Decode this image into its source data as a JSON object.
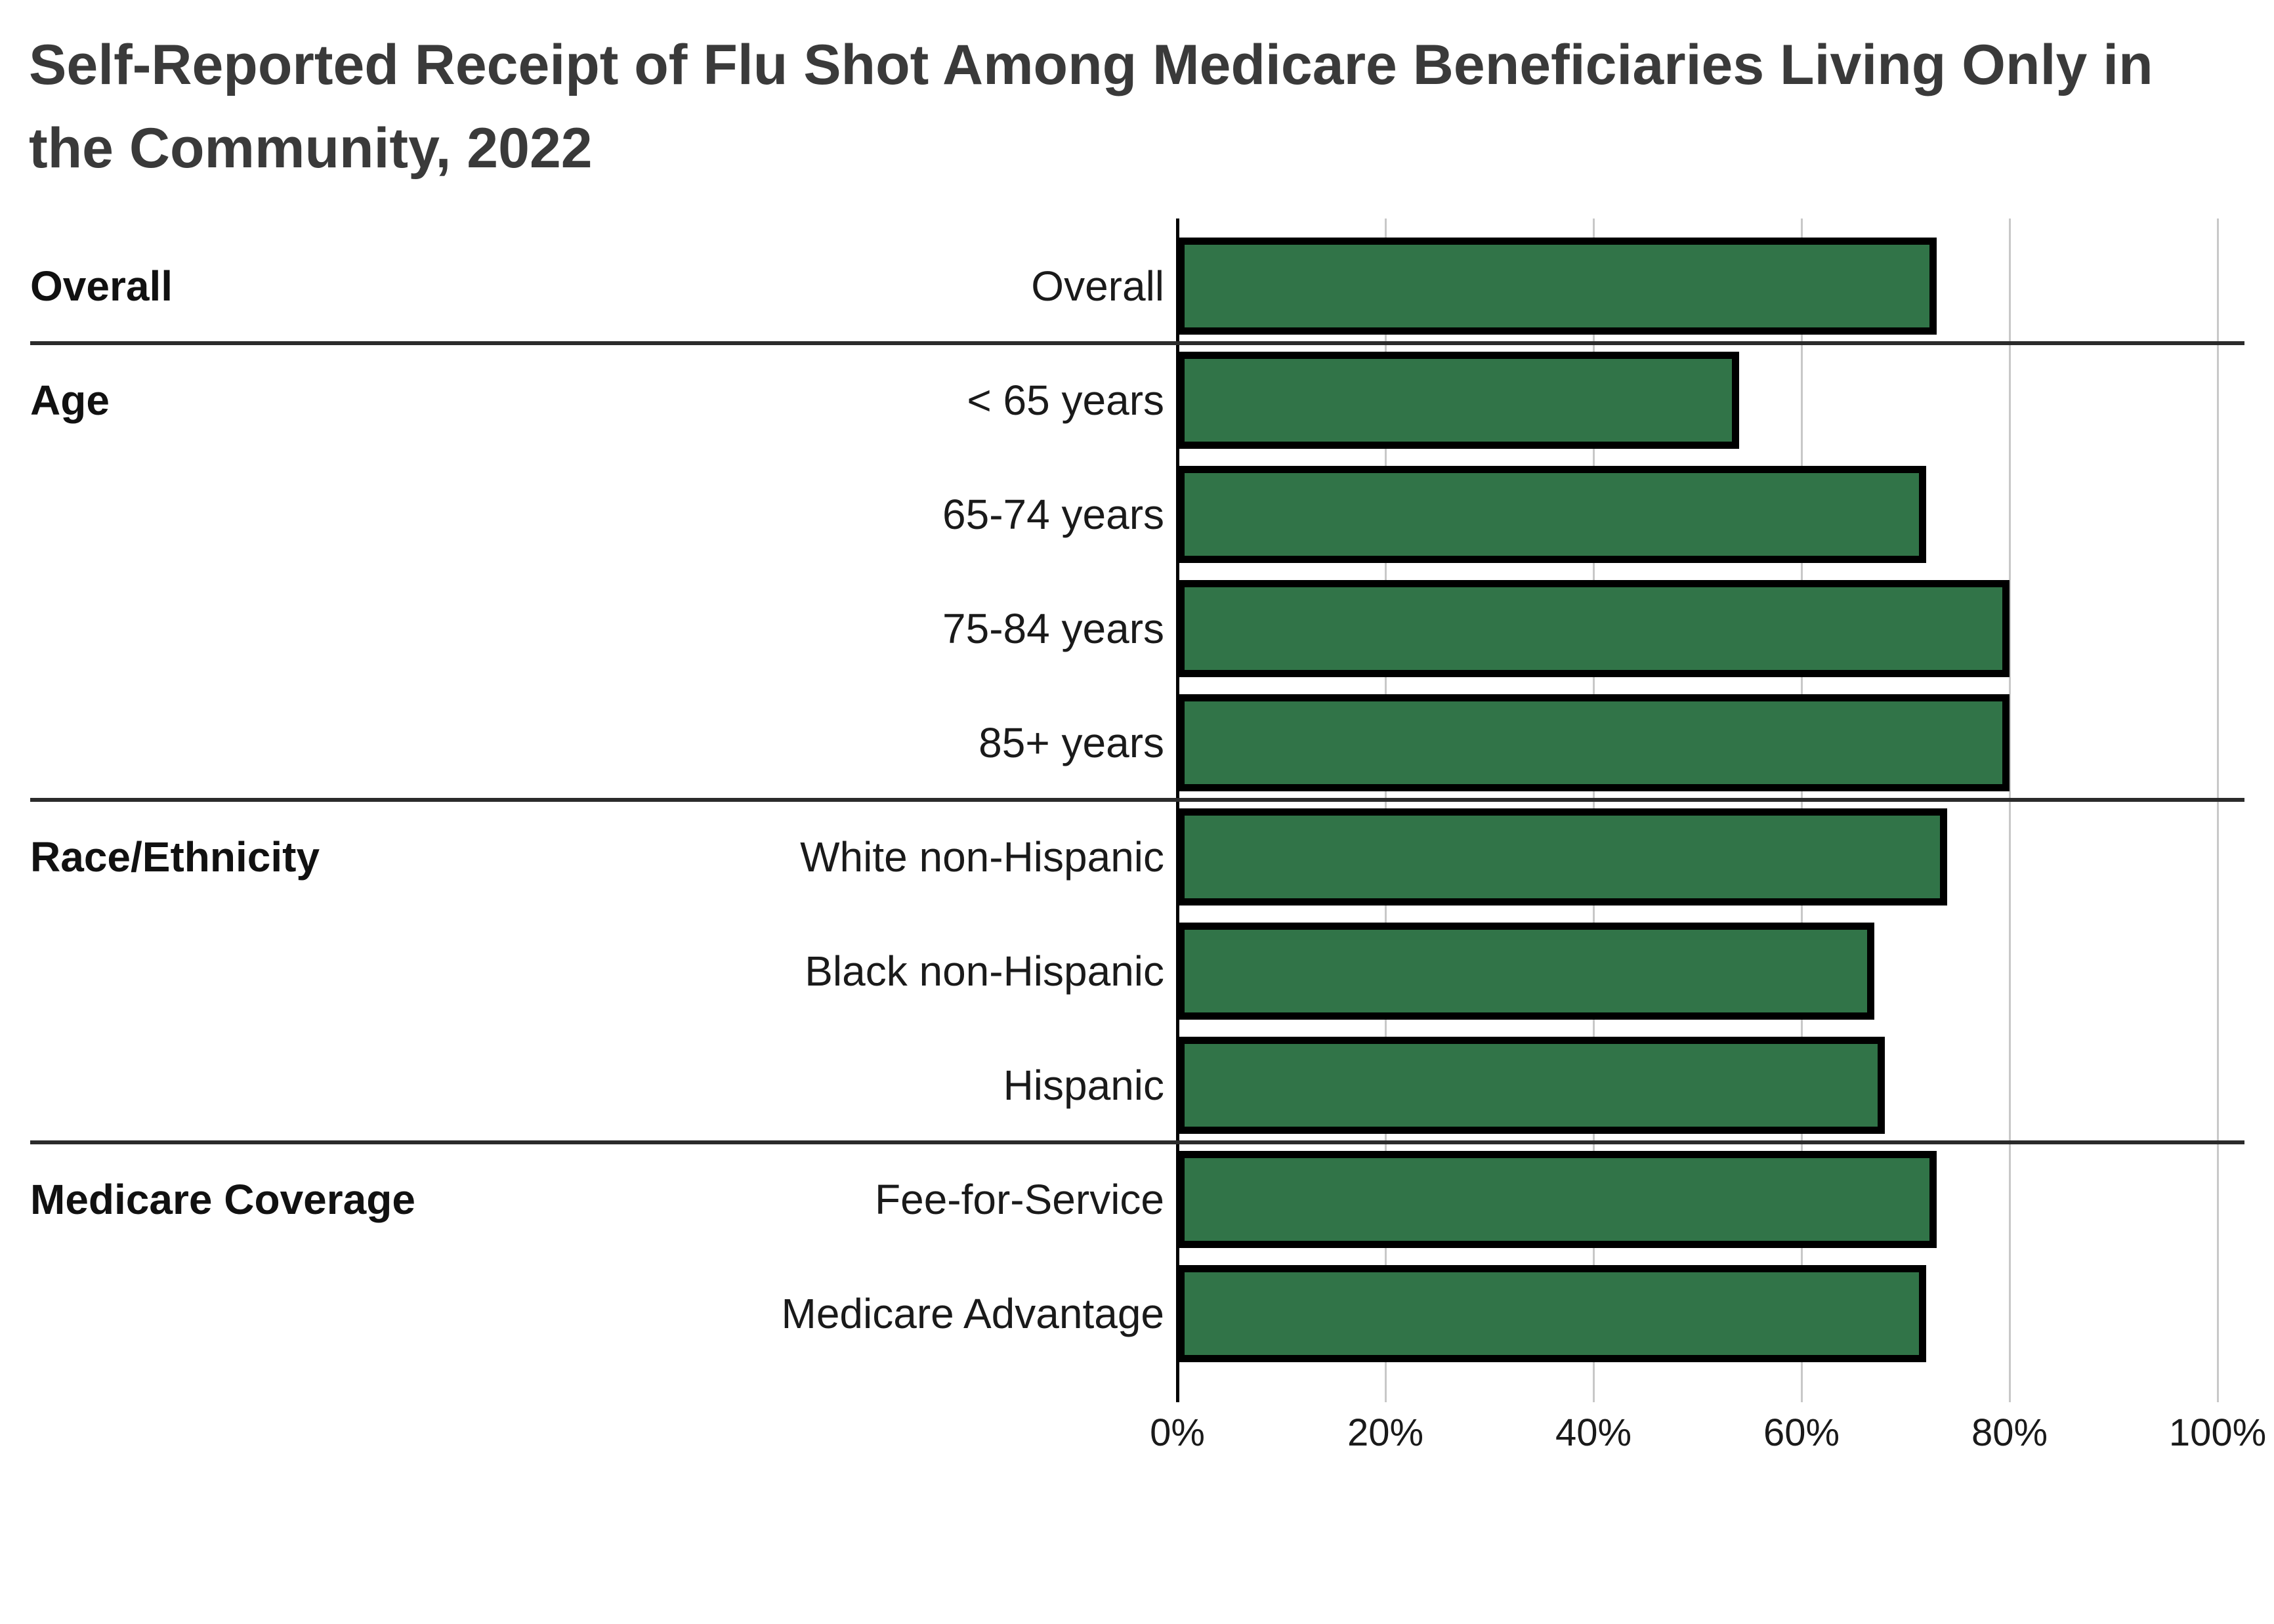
{
  "title": "Self-Reported Receipt of Flu Shot Among Medicare Beneficiaries Living Only in the Community, 2022",
  "colors": {
    "bar_fill": "#317448",
    "bar_border": "#000000",
    "gridline": "#c8c8c8",
    "axis_line": "#000000",
    "section_divider": "#2b2b2b",
    "title_text": "#3a3a3a",
    "label_text": "#1a1a1a"
  },
  "chart_data": {
    "type": "bar",
    "orientation": "horizontal",
    "title": "Self-Reported Receipt of Flu Shot Among Medicare Beneficiaries Living Only in the Community, 2022",
    "unit": "percent",
    "xlim": [
      0,
      100
    ],
    "x_ticks": [
      {
        "value": 0,
        "label": "0%"
      },
      {
        "value": 20,
        "label": "20%"
      },
      {
        "value": 40,
        "label": "40%"
      },
      {
        "value": 60,
        "label": "60%"
      },
      {
        "value": 80,
        "label": "80%"
      },
      {
        "value": 100,
        "label": "100%"
      }
    ],
    "grid": "vertical",
    "legend": "none",
    "groups": [
      {
        "label": "Overall",
        "rows": [
          {
            "label": "Overall",
            "value": 73
          }
        ]
      },
      {
        "label": "Age",
        "rows": [
          {
            "label": "< 65 years",
            "value": 54
          },
          {
            "label": "65-74 years",
            "value": 72
          },
          {
            "label": "75-84 years",
            "value": 80
          },
          {
            "label": "85+ years",
            "value": 80
          }
        ]
      },
      {
        "label": "Race/Ethnicity",
        "rows": [
          {
            "label": "White non-Hispanic",
            "value": 74
          },
          {
            "label": "Black non-Hispanic",
            "value": 67
          },
          {
            "label": "Hispanic",
            "value": 68
          }
        ]
      },
      {
        "label": "Medicare Coverage",
        "rows": [
          {
            "label": "Fee-for-Service",
            "value": 73
          },
          {
            "label": "Medicare Advantage",
            "value": 72
          }
        ]
      }
    ]
  }
}
